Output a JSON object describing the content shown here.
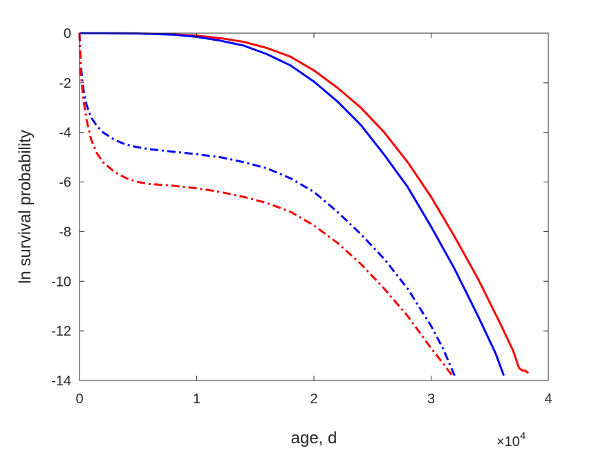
{
  "chart_data": {
    "type": "line",
    "title": "",
    "xlabel": "age, d",
    "ylabel": "ln survival probability",
    "x_exponent_label": "×10",
    "x_exponent_power": "4",
    "xlim": [
      0,
      40000
    ],
    "ylim": [
      -14,
      0
    ],
    "x_ticks": [
      0,
      10000,
      20000,
      30000,
      40000
    ],
    "x_tick_labels": [
      "0",
      "1",
      "2",
      "3",
      "4"
    ],
    "y_ticks": [
      0,
      -2,
      -4,
      -6,
      -8,
      -10,
      -12,
      -14
    ],
    "y_tick_labels": [
      "0",
      "-2",
      "-4",
      "-6",
      "-8",
      "-10",
      "-12",
      "-14"
    ],
    "grid": false,
    "series": [
      {
        "color": "#ff0000",
        "style": "solid",
        "x": [
          0,
          2000,
          5000,
          8000,
          10000,
          12000,
          14000,
          16000,
          18000,
          20000,
          22000,
          24000,
          26000,
          28000,
          30000,
          32000,
          34000,
          36000,
          37000,
          37500,
          37800,
          38000,
          38300
        ],
        "y": [
          0,
          0,
          -0.01,
          -0.05,
          -0.1,
          -0.2,
          -0.35,
          -0.6,
          -0.95,
          -1.5,
          -2.2,
          -3.0,
          -4.0,
          -5.2,
          -6.6,
          -8.2,
          -9.9,
          -11.8,
          -12.8,
          -13.5,
          -13.6,
          -13.6,
          -13.7
        ]
      },
      {
        "color": "#0000ff",
        "style": "solid",
        "x": [
          0,
          2000,
          5000,
          8000,
          10000,
          12000,
          14000,
          16000,
          18000,
          20000,
          22000,
          24000,
          26000,
          28000,
          30000,
          32000,
          34000,
          35500,
          36200
        ],
        "y": [
          0,
          0,
          -0.01,
          -0.06,
          -0.15,
          -0.3,
          -0.5,
          -0.85,
          -1.3,
          -1.95,
          -2.75,
          -3.7,
          -4.9,
          -6.2,
          -7.8,
          -9.5,
          -11.4,
          -12.9,
          -13.8
        ]
      },
      {
        "color": "#0000ff",
        "style": "dashdot",
        "x": [
          0,
          100,
          300,
          600,
          1000,
          1500,
          2000,
          3000,
          4000,
          5000,
          6000,
          8000,
          10000,
          12000,
          14000,
          16000,
          18000,
          20000,
          22000,
          24000,
          26000,
          28000,
          30000,
          31000,
          32000
        ],
        "y": [
          0,
          -1.2,
          -2.2,
          -2.9,
          -3.4,
          -3.75,
          -4.0,
          -4.3,
          -4.5,
          -4.6,
          -4.68,
          -4.78,
          -4.88,
          -5.0,
          -5.2,
          -5.45,
          -5.85,
          -6.4,
          -7.2,
          -8.1,
          -9.1,
          -10.3,
          -11.8,
          -12.7,
          -13.8
        ]
      },
      {
        "color": "#ff0000",
        "style": "dashdot",
        "x": [
          0,
          100,
          300,
          600,
          1000,
          1500,
          2000,
          3000,
          4000,
          5000,
          6000,
          8000,
          10000,
          12000,
          14000,
          16000,
          18000,
          20000,
          22000,
          24000,
          26000,
          28000,
          30000,
          31000,
          31800
        ],
        "y": [
          0,
          -1.5,
          -2.6,
          -3.5,
          -4.3,
          -4.85,
          -5.2,
          -5.6,
          -5.85,
          -6.0,
          -6.08,
          -6.15,
          -6.25,
          -6.4,
          -6.6,
          -6.85,
          -7.2,
          -7.75,
          -8.45,
          -9.3,
          -10.3,
          -11.4,
          -12.7,
          -13.3,
          -13.8
        ]
      }
    ]
  }
}
